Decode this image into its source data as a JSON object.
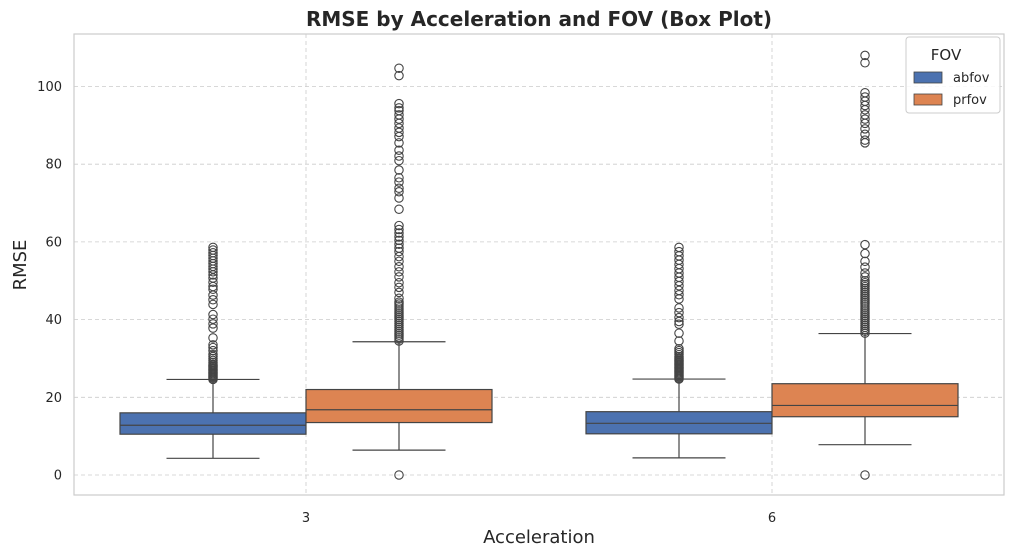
{
  "chart_data": {
    "type": "box",
    "title": "RMSE by Acceleration and FOV (Box Plot)",
    "xlabel": "Acceleration",
    "ylabel": "RMSE",
    "categories": [
      "3",
      "6"
    ],
    "y_ticks": [
      0,
      20,
      40,
      60,
      80,
      100
    ],
    "ylim": [
      -5,
      113
    ],
    "grid": true,
    "legend": {
      "title": "FOV",
      "placement": "top-right"
    },
    "series": [
      {
        "name": "abfov",
        "color": "#4C72B0",
        "boxes": [
          {
            "category": "3",
            "whisker_low": 4.3,
            "q1": 10.5,
            "median": 12.8,
            "q3": 16.0,
            "whisker_high": 24.6,
            "outliers": [
              24.6,
              24.9,
              25.2,
              25.5,
              25.8,
              26.1,
              26.4,
              26.7,
              27.0,
              27.3,
              27.6,
              27.9,
              28.2,
              28.5,
              29.0,
              29.5,
              30.0,
              30.5,
              31.0,
              32.0,
              32.8,
              33.5,
              35.3,
              37.8,
              38.9,
              40.1,
              41.3,
              43.9,
              45.1,
              46.3,
              47.8,
              48.5,
              49.6,
              50.7,
              51.5,
              52.3,
              53.0,
              53.7,
              54.4,
              55.1,
              55.8,
              56.5,
              57.2,
              57.9,
              58.6
            ]
          },
          {
            "category": "6",
            "whisker_low": 4.4,
            "q1": 10.6,
            "median": 13.3,
            "q3": 16.3,
            "whisker_high": 24.7,
            "outliers": [
              24.7,
              25.0,
              25.3,
              25.6,
              25.9,
              26.2,
              26.5,
              26.8,
              27.1,
              27.4,
              27.7,
              28.0,
              28.3,
              28.6,
              28.9,
              29.2,
              29.5,
              29.8,
              30.1,
              30.5,
              31.0,
              31.5,
              32.0,
              32.5,
              34.5,
              36.5,
              38.8,
              39.5,
              40.5,
              41.8,
              43.0,
              45.3,
              46.4,
              47.5,
              48.7,
              49.8,
              50.9,
              52.0,
              53.1,
              54.2,
              55.3,
              56.4,
              57.5,
              58.6
            ]
          }
        ]
      },
      {
        "name": "prfov",
        "color": "#DD8452",
        "boxes": [
          {
            "category": "3",
            "whisker_low": 6.4,
            "q1": 13.5,
            "median": 16.8,
            "q3": 22.0,
            "whisker_high": 34.3,
            "outliers": [
              0,
              34.5,
              35.0,
              35.5,
              36.0,
              36.5,
              37.0,
              37.5,
              38.0,
              38.5,
              39.0,
              39.5,
              40.0,
              40.5,
              41.0,
              41.5,
              42.0,
              42.5,
              43.0,
              43.5,
              44.0,
              44.5,
              45.5,
              47.0,
              48.3,
              49.5,
              51.0,
              52.3,
              53.6,
              55.0,
              56.2,
              57.5,
              58.4,
              59.4,
              60.4,
              61.3,
              62.3,
              63.2,
              64.2,
              68.4,
              71.3,
              72.9,
              73.8,
              75.4,
              76.5,
              78.5,
              80.9,
              82.1,
              83.6,
              85.5,
              87.1,
              88.2,
              89.3,
              90.5,
              91.6,
              92.7,
              93.8,
              94.5,
              95.6,
              102.8,
              104.7
            ]
          },
          {
            "category": "6",
            "whisker_low": 7.8,
            "q1": 15.0,
            "median": 17.9,
            "q3": 23.5,
            "whisker_high": 36.4,
            "outliers": [
              0,
              36.5,
              37.0,
              37.5,
              38.0,
              38.5,
              39.0,
              39.5,
              40.0,
              40.5,
              41.0,
              41.5,
              42.0,
              42.5,
              43.0,
              43.5,
              44.0,
              44.5,
              45.0,
              45.5,
              46.0,
              46.5,
              47.0,
              47.5,
              48.0,
              48.5,
              49.0,
              49.5,
              50.0,
              51.0,
              52.0,
              53.5,
              55.0,
              57.0,
              59.3,
              85.5,
              86.2,
              87.7,
              89.1,
              90.5,
              91.6,
              92.7,
              94.0,
              95.1,
              96.2,
              97.3,
              98.4,
              106.1,
              108.0
            ]
          }
        ]
      }
    ]
  }
}
